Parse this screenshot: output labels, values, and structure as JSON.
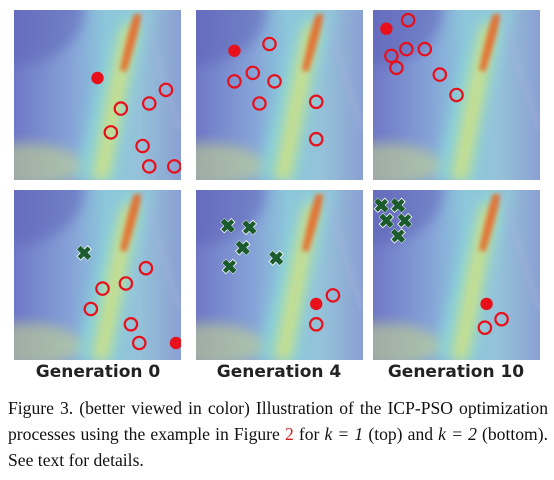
{
  "figure": {
    "columns": [
      "Generation 0",
      "Generation 4",
      "Generation 10"
    ],
    "panel_markers": [
      {
        "id": "top-gen0",
        "best": [
          [
            0.5,
            0.4
          ]
        ],
        "particles": [
          [
            0.64,
            0.58
          ],
          [
            0.81,
            0.55
          ],
          [
            0.91,
            0.47
          ],
          [
            0.58,
            0.72
          ],
          [
            0.77,
            0.8
          ],
          [
            0.81,
            0.92
          ],
          [
            0.96,
            0.92
          ]
        ]
      },
      {
        "id": "top-gen4",
        "best": [
          [
            0.23,
            0.24
          ]
        ],
        "particles": [
          [
            0.44,
            0.2
          ],
          [
            0.34,
            0.37
          ],
          [
            0.47,
            0.42
          ],
          [
            0.23,
            0.42
          ],
          [
            0.38,
            0.55
          ],
          [
            0.72,
            0.54
          ],
          [
            0.72,
            0.76
          ]
        ]
      },
      {
        "id": "top-gen10",
        "best": [
          [
            0.08,
            0.11
          ]
        ],
        "particles": [
          [
            0.21,
            0.06
          ],
          [
            0.31,
            0.23
          ],
          [
            0.2,
            0.23
          ],
          [
            0.11,
            0.27
          ],
          [
            0.14,
            0.34
          ],
          [
            0.4,
            0.38
          ],
          [
            0.5,
            0.5
          ]
        ]
      },
      {
        "id": "bottom-gen0",
        "best": [
          [
            0.97,
            0.9
          ]
        ],
        "cross": [
          [
            0.42,
            0.37
          ]
        ],
        "particles": [
          [
            0.79,
            0.46
          ],
          [
            0.67,
            0.55
          ],
          [
            0.53,
            0.58
          ],
          [
            0.46,
            0.7
          ],
          [
            0.7,
            0.79
          ],
          [
            0.75,
            0.9
          ]
        ]
      },
      {
        "id": "bottom-gen4",
        "best": [
          [
            0.72,
            0.67
          ]
        ],
        "cross": [
          [
            0.19,
            0.21
          ],
          [
            0.32,
            0.22
          ],
          [
            0.28,
            0.34
          ],
          [
            0.48,
            0.4
          ],
          [
            0.2,
            0.45
          ]
        ],
        "particles": [
          [
            0.82,
            0.62
          ],
          [
            0.72,
            0.79
          ]
        ]
      },
      {
        "id": "bottom-gen10",
        "best": [
          [
            0.68,
            0.67
          ]
        ],
        "cross": [
          [
            0.05,
            0.09
          ],
          [
            0.15,
            0.09
          ],
          [
            0.08,
            0.18
          ],
          [
            0.19,
            0.18
          ],
          [
            0.15,
            0.27
          ]
        ],
        "particles": [
          [
            0.77,
            0.76
          ],
          [
            0.67,
            0.81
          ]
        ]
      }
    ],
    "colors": {
      "best_fill": "#e8101a",
      "particle_ring": "#e8101a",
      "cross": "#1c5b2e",
      "ridge": "#e66a2a"
    }
  },
  "caption": {
    "before_ref": "Figure 3. (better viewed in color) Illustration of the ICP-PSO optimization processes using the example in Figure ",
    "ref": "2",
    "mid1": " for ",
    "math1": "k = 1",
    "mid2": " (top) and ",
    "math2": "k = 2",
    "after": " (bottom). See text for details."
  }
}
